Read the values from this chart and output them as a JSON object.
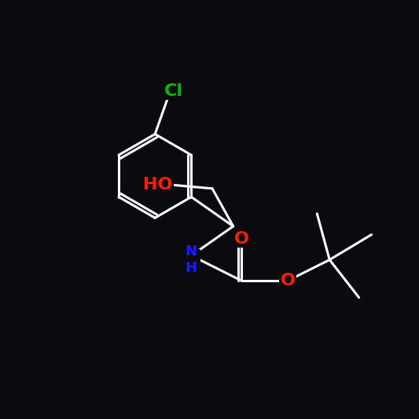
{
  "background_color": "#0a0a0f",
  "bond_color": "#ffffff",
  "colors": {
    "O": "#ff1a00",
    "N": "#1a1aff",
    "Cl": "#00bb00",
    "C": "#ffffff"
  },
  "lw": 2.2,
  "double_sep": 0.09,
  "font_size": 16,
  "font_size_small": 15
}
